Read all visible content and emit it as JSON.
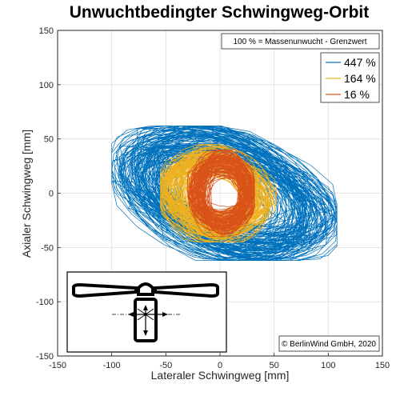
{
  "chart_data": {
    "type": "scatter",
    "title": "Unwuchtbedingter Schwingweg-Orbit",
    "xlabel": "Lateraler Schwingweg [mm]",
    "ylabel": "Axialer Schwingweg [mm]",
    "xlim": [
      -150,
      150
    ],
    "ylim": [
      -150,
      150
    ],
    "xticks": [
      -150,
      -100,
      -50,
      0,
      50,
      100,
      150
    ],
    "yticks": [
      -150,
      -100,
      -50,
      0,
      50,
      100,
      150
    ],
    "grid": true,
    "legend_position": "top-right",
    "note": "100 % = Massenunwucht - Grenzwert",
    "copyright": "© BerlinWind GmbH, 2020",
    "series": [
      {
        "name": "447 %",
        "color": "#0072BD",
        "x_range": [
          -100,
          108
        ],
        "y_range": [
          -62,
          62
        ],
        "slope": -0.25
      },
      {
        "name": "164 %",
        "color": "#EDB120",
        "x_range": [
          -55,
          52
        ],
        "y_range": [
          -45,
          45
        ],
        "slope": -0.1
      },
      {
        "name": "16 %",
        "color": "#D95319",
        "x_range": [
          -30,
          32
        ],
        "y_range": [
          -40,
          40
        ],
        "slope": 0
      }
    ]
  }
}
